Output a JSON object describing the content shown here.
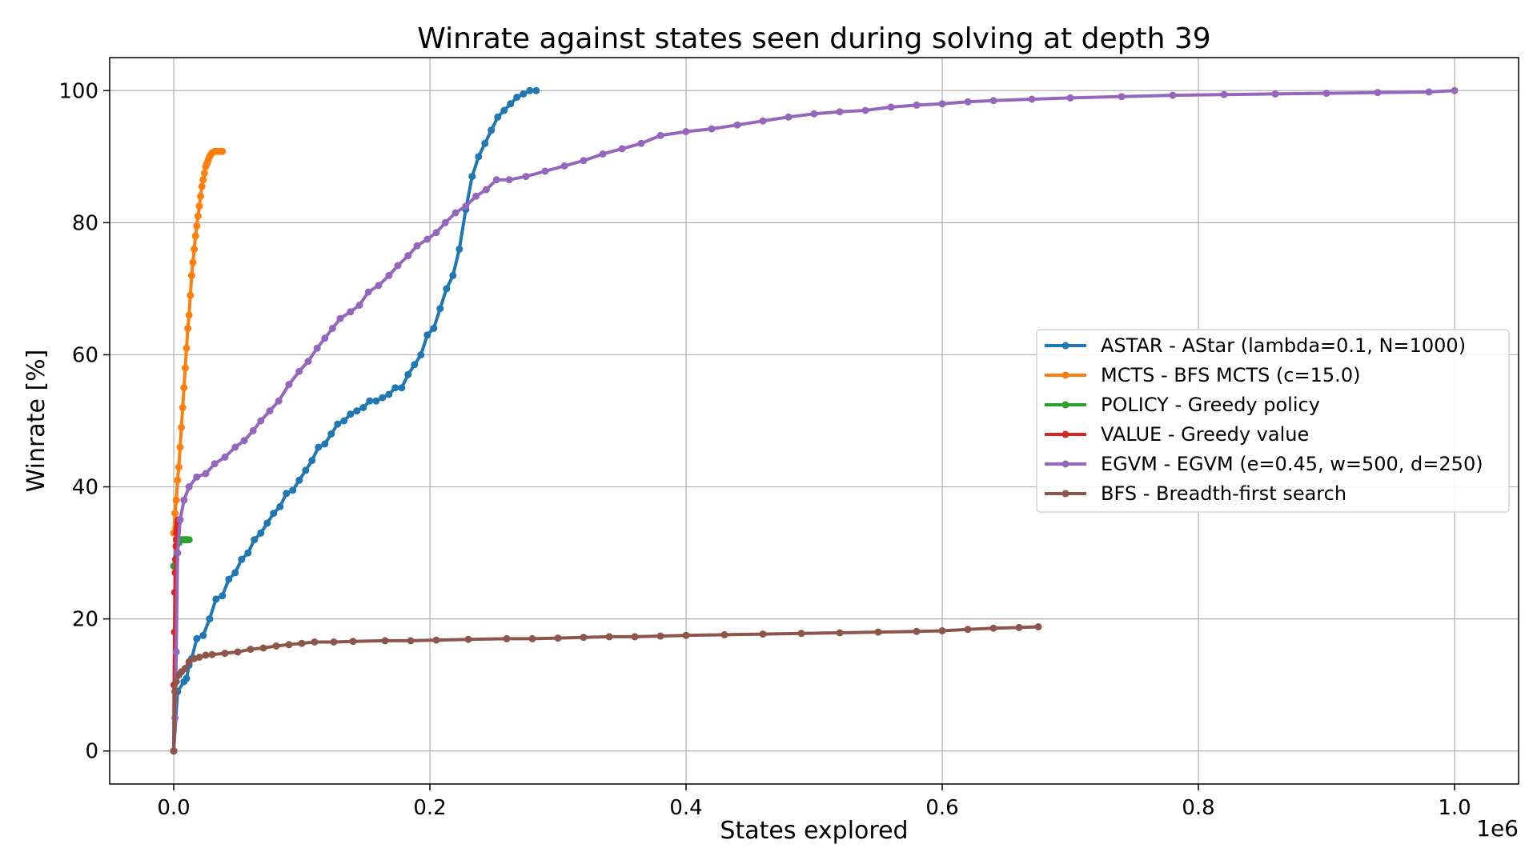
{
  "chart_data": {
    "type": "line",
    "title": "Winrate against states seen during solving at depth 39",
    "xlabel": "States explored",
    "ylabel": "Winrate [%]",
    "x_offset_label": "1e6",
    "x_scale": 1000000,
    "xlim": [
      -50000,
      1050000
    ],
    "ylim": [
      -5,
      105
    ],
    "xticks": [
      0,
      200000,
      400000,
      600000,
      800000,
      1000000
    ],
    "xtick_labels": [
      "0.0",
      "0.2",
      "0.4",
      "0.6",
      "0.8",
      "1.0"
    ],
    "yticks": [
      0,
      20,
      40,
      60,
      80,
      100
    ],
    "ytick_labels": [
      "0",
      "20",
      "40",
      "60",
      "80",
      "100"
    ],
    "grid": true,
    "legend_position": "center-right",
    "series": [
      {
        "name": "ASTAR - AStar (lambda=0.1, N=1000)",
        "color": "#1f77b4",
        "x": [
          0,
          3000,
          8000,
          10000,
          12000,
          14000,
          18000,
          23000,
          28000,
          33000,
          38000,
          43000,
          48000,
          53000,
          58000,
          63000,
          68000,
          73000,
          78000,
          83000,
          88000,
          93000,
          98000,
          103000,
          108000,
          113000,
          118000,
          123000,
          128000,
          133000,
          138000,
          143000,
          148000,
          153000,
          158000,
          163000,
          168000,
          173000,
          178000,
          183000,
          188000,
          193000,
          198000,
          203000,
          208000,
          213000,
          218000,
          223000,
          228000,
          233000,
          238000,
          243000,
          248000,
          253000,
          258000,
          263000,
          268000,
          273000,
          278000,
          283000
        ],
        "y": [
          0,
          9,
          10.5,
          11,
          13,
          14,
          17,
          17.5,
          20,
          23,
          23.5,
          26,
          27,
          29,
          30,
          32,
          33,
          34.5,
          36,
          37,
          39,
          39.5,
          41,
          42.5,
          44,
          46,
          46.5,
          48,
          49.5,
          50,
          51,
          51.5,
          52,
          53,
          53,
          53.5,
          54,
          55,
          55,
          57,
          58.5,
          60,
          63,
          64,
          67,
          70,
          72,
          76,
          82,
          87,
          90,
          92,
          94,
          96,
          97,
          98,
          99,
          99.5,
          100,
          100
        ],
        "x_dense": [],
        "y_dense": []
      },
      {
        "name": "MCTS - BFS MCTS (c=15.0)",
        "color": "#ff7f0e",
        "x": [
          0,
          1000,
          2000,
          3000,
          4000,
          5000,
          6000,
          7000,
          8000,
          9000,
          10000,
          11000,
          12000,
          13000,
          14000,
          15000,
          16000,
          17000,
          18000,
          19000,
          20000,
          21000,
          22000,
          23000,
          24000,
          25000,
          26000,
          27000,
          28000,
          29000,
          30000,
          32000,
          34000,
          36000,
          38000
        ],
        "y": [
          33,
          36,
          38,
          41,
          43,
          46,
          49,
          52,
          55,
          58,
          61,
          64,
          66,
          69,
          72,
          74,
          76,
          78,
          79.5,
          81,
          82.5,
          84,
          85.5,
          86.5,
          87.5,
          88.5,
          89,
          89.5,
          90,
          90.3,
          90.6,
          90.8,
          90.8,
          90.8,
          90.8
        ]
      },
      {
        "name": "POLICY - Greedy policy",
        "color": "#2ca02c",
        "x": [
          0,
          2000,
          4000,
          6000,
          8000,
          10000,
          12000
        ],
        "y": [
          28,
          31,
          31.5,
          32,
          32,
          32,
          32
        ]
      },
      {
        "name": "VALUE - Greedy value",
        "color": "#d62728",
        "x": [
          0,
          300,
          600,
          900,
          1200,
          1500,
          1800,
          2100,
          2400,
          2700,
          3000,
          3300,
          3600,
          4000
        ],
        "y": [
          0,
          10,
          18,
          24,
          27,
          29,
          31,
          32,
          33,
          33.5,
          34,
          34.5,
          35,
          35
        ]
      },
      {
        "name": "EGVM - EGVM (e=0.45, w=500, d=250)",
        "color": "#9467bd",
        "x": [
          0,
          1000,
          2000,
          3000,
          5000,
          8000,
          12000,
          18000,
          25000,
          32000,
          40000,
          48000,
          55000,
          62000,
          68000,
          75000,
          82000,
          90000,
          98000,
          105000,
          112000,
          118000,
          124000,
          130000,
          138000,
          145000,
          152000,
          160000,
          168000,
          175000,
          183000,
          190000,
          198000,
          205000,
          212000,
          220000,
          228000,
          236000,
          244000,
          252000,
          262000,
          275000,
          290000,
          305000,
          320000,
          335000,
          350000,
          365000,
          380000,
          400000,
          420000,
          440000,
          460000,
          480000,
          500000,
          520000,
          540000,
          560000,
          580000,
          600000,
          620000,
          640000,
          670000,
          700000,
          740000,
          780000,
          820000,
          860000,
          900000,
          940000,
          980000,
          1000000
        ],
        "y": [
          0,
          5,
          15,
          30,
          35,
          38,
          40,
          41.5,
          42,
          43.5,
          44.5,
          46,
          47,
          48.5,
          50,
          51.5,
          53,
          55.5,
          57.5,
          59,
          61,
          62.5,
          64,
          65.5,
          66.5,
          67.5,
          69.5,
          70.5,
          72,
          73.5,
          75,
          76.5,
          77.5,
          78.5,
          80,
          81.5,
          82.5,
          84,
          85,
          86.5,
          86.5,
          87,
          87.8,
          88.6,
          89.4,
          90.4,
          91.2,
          92,
          93.2,
          93.8,
          94.2,
          94.8,
          95.4,
          96,
          96.5,
          96.8,
          97,
          97.5,
          97.8,
          98,
          98.3,
          98.5,
          98.7,
          98.9,
          99.1,
          99.3,
          99.4,
          99.5,
          99.6,
          99.7,
          99.8,
          100
        ]
      },
      {
        "name": "BFS - Breadth-first search",
        "color": "#8c564b",
        "x": [
          0,
          1000,
          2000,
          4000,
          6000,
          9000,
          12000,
          16000,
          20000,
          25000,
          30000,
          40000,
          50000,
          60000,
          70000,
          80000,
          90000,
          100000,
          110000,
          125000,
          140000,
          165000,
          185000,
          205000,
          230000,
          260000,
          280000,
          300000,
          320000,
          340000,
          360000,
          380000,
          400000,
          430000,
          460000,
          490000,
          520000,
          550000,
          580000,
          600000,
          620000,
          640000,
          660000,
          675000
        ],
        "y": [
          0,
          9,
          10.5,
          11.5,
          12,
          12.5,
          13.5,
          14,
          14.2,
          14.5,
          14.6,
          14.8,
          15,
          15.4,
          15.6,
          15.9,
          16.1,
          16.3,
          16.5,
          16.5,
          16.6,
          16.7,
          16.7,
          16.8,
          16.9,
          17,
          17,
          17.1,
          17.2,
          17.3,
          17.3,
          17.4,
          17.5,
          17.6,
          17.7,
          17.8,
          17.9,
          18,
          18.1,
          18.2,
          18.4,
          18.6,
          18.7,
          18.8
        ]
      }
    ]
  }
}
